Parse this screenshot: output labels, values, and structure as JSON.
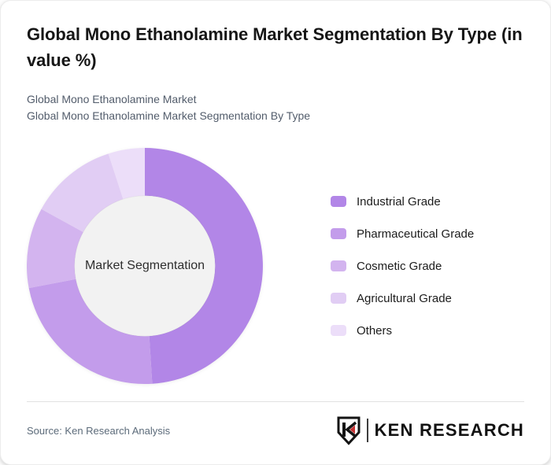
{
  "card": {
    "title": "Global Mono Ethanolamine Market Segmentation By Type (in value %)",
    "subtitle_line1": "Global Mono Ethanolamine Market",
    "subtitle_line2": "Global Mono Ethanolamine Market Segmentation By Type",
    "source_text": "Source: Ken Research Analysis",
    "logo": {
      "brand": "KEN RESEARCH",
      "monogram": "K",
      "accent_color": "#c63031"
    }
  },
  "chart_data": {
    "type": "pie",
    "variant": "donut",
    "title": "Global Mono Ethanolamine Market Segmentation By Type (in value %)",
    "unit": "value %",
    "center_label": "Market Segmentation",
    "categories": [
      "Industrial Grade",
      "Pharmaceutical Grade",
      "Cosmetic Grade",
      "Agricultural Grade",
      "Others"
    ],
    "values": [
      49,
      23,
      11,
      12,
      5
    ],
    "colors": [
      "#b286e7",
      "#c39ceb",
      "#d3b4ef",
      "#e1cdf4",
      "#ecdef9"
    ],
    "start_angle_deg": 0,
    "direction": "clockwise",
    "inner_radius_ratio": 0.595,
    "hole_color": "#f2f2f2",
    "legend_position": "right",
    "data_labels": "none"
  }
}
